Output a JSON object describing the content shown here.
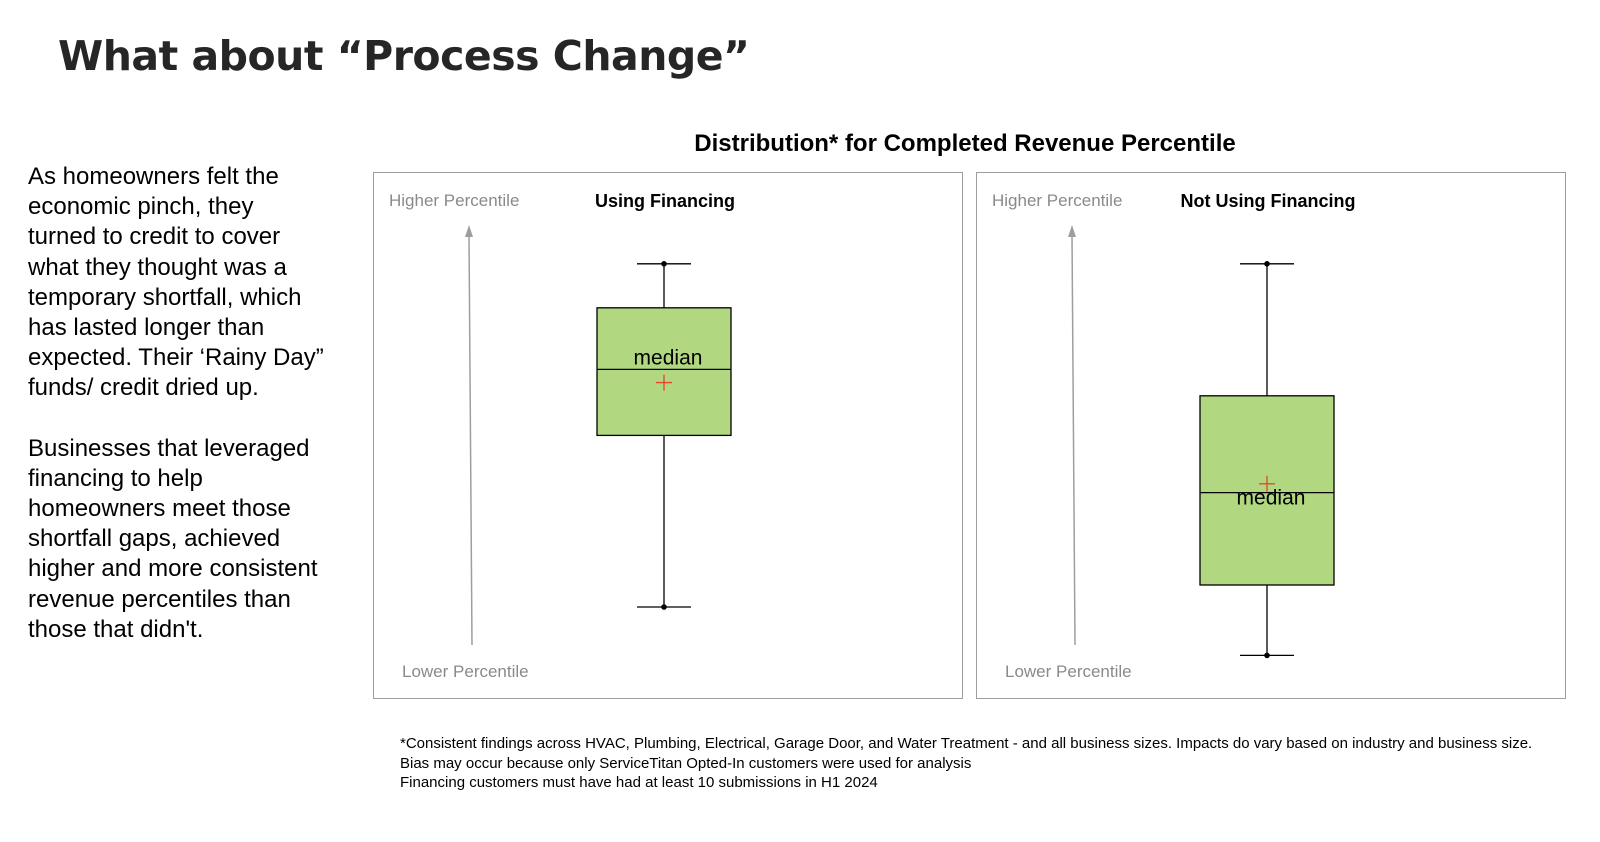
{
  "page": {
    "title": "What about “Process Change”"
  },
  "body": {
    "paragraphs": [
      "As homeowners felt the economic pinch, they turned to credit to cover what they thought was a temporary shortfall, which has lasted longer than expected. Their ‘Rainy Day” funds/ credit dried up.",
      "Businesses that leveraged financing to help homeowners meet those shortfall gaps, achieved higher and more consistent revenue percentiles than those that didn't."
    ]
  },
  "chart_data": {
    "type": "box",
    "title": "Distribution* for Completed Revenue Percentile",
    "ylabel_top": "Higher Percentile",
    "ylabel_bottom": "Lower Percentile",
    "ylim": [
      0,
      1
    ],
    "series": [
      {
        "name": "Using Financing",
        "whisker_high": 0.93,
        "q3": 0.83,
        "median": 0.69,
        "mean": 0.66,
        "q1": 0.54,
        "whisker_low": 0.15,
        "median_label": "median"
      },
      {
        "name": "Not Using Financing",
        "whisker_high": 0.93,
        "q3": 0.63,
        "median": 0.41,
        "mean": 0.43,
        "q1": 0.2,
        "whisker_low": 0.04,
        "median_label": "median"
      }
    ],
    "colors": {
      "box_fill": "#b1d880",
      "mean_marker": "#e0452b",
      "axis": "#9e9e9e",
      "axis_label": "#8a8a8a"
    }
  },
  "footnote": {
    "lines": [
      "*Consistent findings across HVAC, Plumbing, Electrical, Garage Door, and Water Treatment - and all business sizes. Impacts do vary based on industry and business size.",
      "Bias may occur because only ServiceTitan Opted-In customers were used for analysis",
      "Financing customers must have had at least 10 submissions in H1 2024"
    ]
  }
}
